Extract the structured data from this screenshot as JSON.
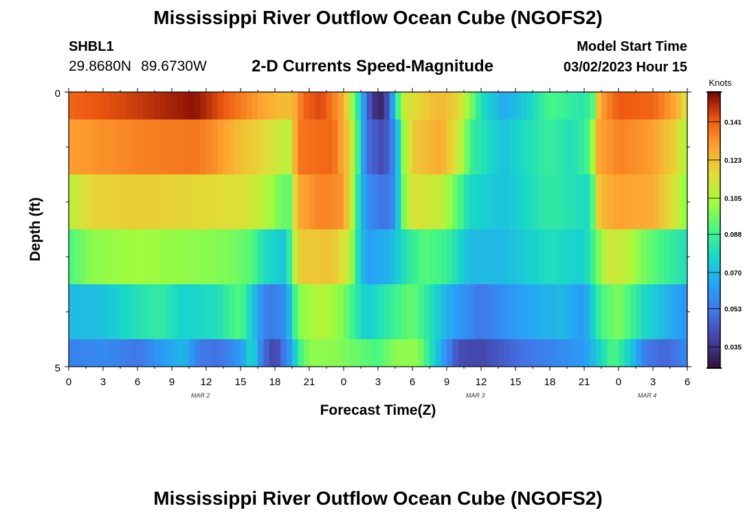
{
  "page": {
    "title": "Mississippi River Outflow Ocean Cube (NGOFS2)",
    "station": "SHBL1",
    "latitude": "29.8680N",
    "longitude": "89.6730W",
    "subtitle": "2-D Currents Speed-Magnitude",
    "model_start_label": "Model Start Time",
    "model_start_value": "03/02/2023 Hour 15",
    "second_title": "Mississippi River Outflow Ocean Cube (NGOFS2)"
  },
  "chart_data": {
    "type": "heatmap",
    "title": "2-D Currents Speed-Magnitude",
    "xlabel": "Forecast Time(Z)",
    "ylabel": "Depth (ft)",
    "colorbar_label": "Knots",
    "x_tick_labels": [
      "0",
      "3",
      "6",
      "9",
      "12",
      "15",
      "18",
      "21",
      "0",
      "3",
      "6",
      "9",
      "12",
      "15",
      "18",
      "21",
      "0",
      "3",
      "6"
    ],
    "date_labels": [
      {
        "text": "MAR 2",
        "hour": 11.5
      },
      {
        "text": "MAR 3",
        "hour": 35.5
      },
      {
        "text": "MAR 4",
        "hour": 50.5
      }
    ],
    "y_tick_labels": [
      "0",
      "5"
    ],
    "ylim": [
      0,
      5
    ],
    "hours_range": [
      0,
      54
    ],
    "colorbar_ticks": [
      "0.141",
      "0.123",
      "0.105",
      "0.088",
      "0.070",
      "0.053",
      "0.035"
    ],
    "colorbar_range": [
      0.025,
      0.155
    ],
    "depth_bands": [
      {
        "depth_range": [
          0,
          0.5
        ],
        "keyframes": [
          [
            0,
            0.14
          ],
          [
            5,
            0.145
          ],
          [
            11,
            0.153
          ],
          [
            14,
            0.14
          ],
          [
            18,
            0.125
          ],
          [
            19.5,
            0.123
          ],
          [
            20.5,
            0.14
          ],
          [
            22,
            0.145
          ],
          [
            24,
            0.128
          ],
          [
            24.5,
            0.11
          ],
          [
            25,
            0.092
          ],
          [
            25.8,
            0.06
          ],
          [
            26.5,
            0.035
          ],
          [
            27.5,
            0.03
          ],
          [
            28.2,
            0.06
          ],
          [
            29,
            0.102
          ],
          [
            29.5,
            0.113
          ],
          [
            31,
            0.12
          ],
          [
            32.5,
            0.125
          ],
          [
            34,
            0.118
          ],
          [
            35,
            0.1
          ],
          [
            36,
            0.08
          ],
          [
            38,
            0.066
          ],
          [
            40,
            0.075
          ],
          [
            42,
            0.09
          ],
          [
            45,
            0.082
          ],
          [
            46,
            0.095
          ],
          [
            46.3,
            0.128
          ],
          [
            48,
            0.142
          ],
          [
            51,
            0.14
          ],
          [
            53,
            0.128
          ],
          [
            54,
            0.112
          ]
        ]
      },
      {
        "depth_range": [
          0.5,
          1.5
        ],
        "keyframes": [
          [
            0,
            0.13
          ],
          [
            6,
            0.135
          ],
          [
            11,
            0.137
          ],
          [
            13,
            0.132
          ],
          [
            15,
            0.123
          ],
          [
            17,
            0.117
          ],
          [
            18.5,
            0.11
          ],
          [
            19.3,
            0.108
          ],
          [
            20,
            0.137
          ],
          [
            23,
            0.14
          ],
          [
            24.5,
            0.12
          ],
          [
            25.2,
            0.09
          ],
          [
            26,
            0.05
          ],
          [
            27.5,
            0.04
          ],
          [
            28.5,
            0.06
          ],
          [
            29.3,
            0.103
          ],
          [
            30,
            0.12
          ],
          [
            32.5,
            0.128
          ],
          [
            34,
            0.112
          ],
          [
            35.3,
            0.085
          ],
          [
            38,
            0.072
          ],
          [
            40,
            0.08
          ],
          [
            42,
            0.086
          ],
          [
            44,
            0.08
          ],
          [
            45.5,
            0.09
          ],
          [
            46.2,
            0.128
          ],
          [
            48,
            0.135
          ],
          [
            51,
            0.13
          ],
          [
            53,
            0.118
          ],
          [
            54,
            0.103
          ]
        ]
      },
      {
        "depth_range": [
          1.5,
          2.5
        ],
        "keyframes": [
          [
            0,
            0.108
          ],
          [
            2,
            0.118
          ],
          [
            6,
            0.12
          ],
          [
            12,
            0.117
          ],
          [
            15,
            0.115
          ],
          [
            17,
            0.108
          ],
          [
            18,
            0.1
          ],
          [
            19.2,
            0.092
          ],
          [
            20,
            0.128
          ],
          [
            22,
            0.135
          ],
          [
            24,
            0.132
          ],
          [
            24.8,
            0.105
          ],
          [
            25.4,
            0.075
          ],
          [
            26,
            0.06
          ],
          [
            27.5,
            0.05
          ],
          [
            28.5,
            0.06
          ],
          [
            29.3,
            0.1
          ],
          [
            30,
            0.115
          ],
          [
            32.5,
            0.11
          ],
          [
            34,
            0.092
          ],
          [
            35,
            0.078
          ],
          [
            38,
            0.072
          ],
          [
            42,
            0.085
          ],
          [
            45.5,
            0.078
          ],
          [
            46.3,
            0.123
          ],
          [
            48,
            0.13
          ],
          [
            51,
            0.127
          ],
          [
            53,
            0.113
          ],
          [
            54,
            0.097
          ]
        ]
      },
      {
        "depth_range": [
          2.5,
          3.5
        ],
        "keyframes": [
          [
            0,
            0.09
          ],
          [
            2,
            0.1
          ],
          [
            6,
            0.103
          ],
          [
            11,
            0.1
          ],
          [
            14,
            0.098
          ],
          [
            16,
            0.092
          ],
          [
            17,
            0.08
          ],
          [
            19,
            0.072
          ],
          [
            20,
            0.12
          ],
          [
            23,
            0.122
          ],
          [
            24.5,
            0.11
          ],
          [
            25.3,
            0.078
          ],
          [
            26,
            0.063
          ],
          [
            28,
            0.068
          ],
          [
            29.5,
            0.082
          ],
          [
            31,
            0.092
          ],
          [
            33,
            0.087
          ],
          [
            35,
            0.07
          ],
          [
            38,
            0.07
          ],
          [
            42,
            0.08
          ],
          [
            45,
            0.075
          ],
          [
            46,
            0.092
          ],
          [
            47,
            0.112
          ],
          [
            48.5,
            0.11
          ],
          [
            50,
            0.098
          ],
          [
            52,
            0.088
          ],
          [
            54,
            0.08
          ]
        ]
      },
      {
        "depth_range": [
          3.5,
          4.5
        ],
        "keyframes": [
          [
            0,
            0.07
          ],
          [
            3,
            0.072
          ],
          [
            6,
            0.081
          ],
          [
            8,
            0.085
          ],
          [
            10,
            0.076
          ],
          [
            13,
            0.08
          ],
          [
            15,
            0.092
          ],
          [
            16.5,
            0.065
          ],
          [
            17.5,
            0.052
          ],
          [
            19,
            0.06
          ],
          [
            20,
            0.098
          ],
          [
            22,
            0.108
          ],
          [
            24,
            0.098
          ],
          [
            25,
            0.085
          ],
          [
            26,
            0.074
          ],
          [
            28,
            0.085
          ],
          [
            30,
            0.095
          ],
          [
            31.5,
            0.082
          ],
          [
            33,
            0.068
          ],
          [
            36,
            0.052
          ],
          [
            38,
            0.06
          ],
          [
            40,
            0.065
          ],
          [
            43,
            0.07
          ],
          [
            45,
            0.062
          ],
          [
            46.5,
            0.09
          ],
          [
            48,
            0.098
          ],
          [
            50,
            0.08
          ],
          [
            53,
            0.065
          ],
          [
            54,
            0.06
          ]
        ]
      },
      {
        "depth_range": [
          4.5,
          5.0
        ],
        "keyframes": [
          [
            0,
            0.055
          ],
          [
            3,
            0.058
          ],
          [
            6,
            0.052
          ],
          [
            8,
            0.062
          ],
          [
            10,
            0.07
          ],
          [
            11.5,
            0.053
          ],
          [
            13,
            0.05
          ],
          [
            15,
            0.062
          ],
          [
            16,
            0.08
          ],
          [
            17,
            0.05
          ],
          [
            18,
            0.038
          ],
          [
            19.5,
            0.065
          ],
          [
            20,
            0.085
          ],
          [
            21,
            0.1
          ],
          [
            23,
            0.1
          ],
          [
            25,
            0.095
          ],
          [
            27,
            0.09
          ],
          [
            28.5,
            0.1
          ],
          [
            30.5,
            0.1
          ],
          [
            32,
            0.075
          ],
          [
            34,
            0.042
          ],
          [
            36,
            0.04
          ],
          [
            38,
            0.046
          ],
          [
            40,
            0.052
          ],
          [
            43,
            0.058
          ],
          [
            45,
            0.062
          ],
          [
            46.5,
            0.078
          ],
          [
            47.5,
            0.092
          ],
          [
            49,
            0.075
          ],
          [
            50.5,
            0.052
          ],
          [
            52,
            0.048
          ],
          [
            53,
            0.052
          ],
          [
            54,
            0.058
          ]
        ]
      }
    ]
  }
}
